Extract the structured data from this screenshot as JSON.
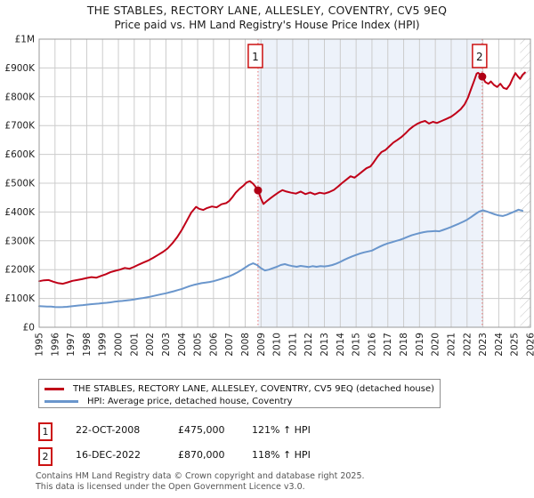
{
  "title": "THE STABLES, RECTORY LANE, ALLESLEY, COVENTRY, CV5 9EQ",
  "subtitle": "Price paid vs. HM Land Registry's House Price Index (HPI)",
  "chart_data": {
    "type": "line",
    "title": "Price paid vs. HM Land Registry's House Price Index (HPI)",
    "x_axis": {
      "range": [
        1995,
        2026
      ],
      "ticks": [
        1995,
        1996,
        1997,
        1998,
        1999,
        2000,
        2001,
        2002,
        2003,
        2004,
        2005,
        2006,
        2007,
        2008,
        2009,
        2010,
        2011,
        2012,
        2013,
        2014,
        2015,
        2016,
        2017,
        2018,
        2019,
        2020,
        2021,
        2022,
        2023,
        2024,
        2025,
        2026
      ],
      "grid": true
    },
    "y_axis": {
      "range": [
        0,
        1000000
      ],
      "unit": "GBP",
      "tick_values": [
        0,
        100000,
        200000,
        300000,
        400000,
        500000,
        600000,
        700000,
        800000,
        900000,
        1000000
      ],
      "tick_labels": [
        "£0",
        "£100K",
        "£200K",
        "£300K",
        "£400K",
        "£500K",
        "£600K",
        "£700K",
        "£800K",
        "£900K",
        "£1M"
      ],
      "grid": true
    },
    "shaded_region": {
      "from": 2008.81,
      "to": 2022.96,
      "color": "#edf2fa"
    },
    "hatch_region": {
      "from": 2025.35,
      "to": 2026
    },
    "markers": [
      {
        "label": "1",
        "x": 2008.81,
        "y": 475000
      },
      {
        "label": "2",
        "x": 2022.96,
        "y": 870000
      }
    ],
    "series": [
      {
        "name": "THE STABLES, RECTORY LANE, ALLESLEY, COVENTRY, CV5 9EQ (detached house)",
        "color": "#c00018",
        "points": [
          [
            1995.0,
            160000
          ],
          [
            1995.3,
            163000
          ],
          [
            1995.6,
            164000
          ],
          [
            1995.9,
            158000
          ],
          [
            1996.2,
            153000
          ],
          [
            1996.5,
            151000
          ],
          [
            1996.8,
            156000
          ],
          [
            1997.1,
            161000
          ],
          [
            1997.4,
            164000
          ],
          [
            1997.7,
            167000
          ],
          [
            1998.0,
            171000
          ],
          [
            1998.3,
            174000
          ],
          [
            1998.6,
            172000
          ],
          [
            1998.9,
            178000
          ],
          [
            1999.2,
            184000
          ],
          [
            1999.5,
            191000
          ],
          [
            1999.8,
            196000
          ],
          [
            2000.1,
            200000
          ],
          [
            2000.4,
            206000
          ],
          [
            2000.7,
            203000
          ],
          [
            2001.0,
            210000
          ],
          [
            2001.3,
            218000
          ],
          [
            2001.6,
            225000
          ],
          [
            2001.9,
            232000
          ],
          [
            2002.2,
            241000
          ],
          [
            2002.5,
            251000
          ],
          [
            2002.8,
            261000
          ],
          [
            2003.1,
            273000
          ],
          [
            2003.4,
            291000
          ],
          [
            2003.7,
            312000
          ],
          [
            2004.0,
            338000
          ],
          [
            2004.3,
            368000
          ],
          [
            2004.6,
            398000
          ],
          [
            2004.9,
            418000
          ],
          [
            2005.1,
            411000
          ],
          [
            2005.35,
            407000
          ],
          [
            2005.6,
            414000
          ],
          [
            2005.9,
            419000
          ],
          [
            2006.2,
            416000
          ],
          [
            2006.5,
            427000
          ],
          [
            2006.8,
            431000
          ],
          [
            2007.0,
            439000
          ],
          [
            2007.2,
            452000
          ],
          [
            2007.4,
            467000
          ],
          [
            2007.65,
            481000
          ],
          [
            2007.9,
            492000
          ],
          [
            2008.1,
            503000
          ],
          [
            2008.3,
            507000
          ],
          [
            2008.5,
            498000
          ],
          [
            2008.65,
            488000
          ],
          [
            2008.81,
            475000
          ],
          [
            2009.0,
            446000
          ],
          [
            2009.15,
            428000
          ],
          [
            2009.35,
            437000
          ],
          [
            2009.6,
            448000
          ],
          [
            2009.85,
            458000
          ],
          [
            2010.1,
            468000
          ],
          [
            2010.35,
            476000
          ],
          [
            2010.6,
            471000
          ],
          [
            2010.9,
            467000
          ],
          [
            2011.2,
            464000
          ],
          [
            2011.5,
            471000
          ],
          [
            2011.8,
            462000
          ],
          [
            2012.1,
            468000
          ],
          [
            2012.4,
            461000
          ],
          [
            2012.7,
            467000
          ],
          [
            2013.0,
            464000
          ],
          [
            2013.3,
            469000
          ],
          [
            2013.6,
            477000
          ],
          [
            2013.85,
            488000
          ],
          [
            2014.1,
            500000
          ],
          [
            2014.4,
            513000
          ],
          [
            2014.65,
            524000
          ],
          [
            2014.9,
            519000
          ],
          [
            2015.15,
            530000
          ],
          [
            2015.4,
            541000
          ],
          [
            2015.65,
            552000
          ],
          [
            2015.9,
            558000
          ],
          [
            2016.1,
            572000
          ],
          [
            2016.35,
            592000
          ],
          [
            2016.6,
            608000
          ],
          [
            2016.85,
            615000
          ],
          [
            2017.1,
            628000
          ],
          [
            2017.35,
            641000
          ],
          [
            2017.6,
            650000
          ],
          [
            2017.85,
            660000
          ],
          [
            2018.1,
            672000
          ],
          [
            2018.35,
            686000
          ],
          [
            2018.6,
            697000
          ],
          [
            2018.85,
            706000
          ],
          [
            2019.1,
            712000
          ],
          [
            2019.35,
            716000
          ],
          [
            2019.6,
            707000
          ],
          [
            2019.85,
            713000
          ],
          [
            2020.1,
            709000
          ],
          [
            2020.4,
            716000
          ],
          [
            2020.7,
            723000
          ],
          [
            2021.0,
            731000
          ],
          [
            2021.3,
            743000
          ],
          [
            2021.6,
            757000
          ],
          [
            2021.85,
            774000
          ],
          [
            2022.05,
            796000
          ],
          [
            2022.25,
            826000
          ],
          [
            2022.45,
            856000
          ],
          [
            2022.6,
            880000
          ],
          [
            2022.7,
            883000
          ],
          [
            2022.96,
            870000
          ],
          [
            2023.15,
            851000
          ],
          [
            2023.35,
            845000
          ],
          [
            2023.5,
            853000
          ],
          [
            2023.7,
            841000
          ],
          [
            2023.9,
            834000
          ],
          [
            2024.1,
            845000
          ],
          [
            2024.3,
            831000
          ],
          [
            2024.5,
            827000
          ],
          [
            2024.7,
            842000
          ],
          [
            2024.9,
            866000
          ],
          [
            2025.05,
            882000
          ],
          [
            2025.2,
            871000
          ],
          [
            2025.35,
            862000
          ],
          [
            2025.5,
            876000
          ],
          [
            2025.65,
            884000
          ]
        ]
      },
      {
        "name": "HPI: Average price, detached house, Coventry",
        "color": "#6a96cc",
        "points": [
          [
            1995.0,
            73000
          ],
          [
            1995.25,
            72500
          ],
          [
            1995.5,
            72000
          ],
          [
            1995.75,
            71500
          ],
          [
            1996.0,
            70500
          ],
          [
            1996.25,
            69800
          ],
          [
            1996.5,
            70200
          ],
          [
            1996.75,
            71000
          ],
          [
            1997.0,
            72500
          ],
          [
            1997.25,
            74000
          ],
          [
            1997.5,
            75500
          ],
          [
            1997.75,
            77000
          ],
          [
            1998.0,
            78500
          ],
          [
            1998.25,
            79800
          ],
          [
            1998.5,
            81000
          ],
          [
            1998.75,
            82000
          ],
          [
            1999.0,
            83500
          ],
          [
            1999.25,
            85000
          ],
          [
            1999.5,
            86500
          ],
          [
            1999.75,
            88500
          ],
          [
            2000.0,
            90000
          ],
          [
            2000.25,
            91500
          ],
          [
            2000.5,
            93000
          ],
          [
            2000.75,
            94500
          ],
          [
            2001.0,
            96500
          ],
          [
            2001.25,
            99000
          ],
          [
            2001.5,
            101000
          ],
          [
            2001.75,
            103500
          ],
          [
            2002.0,
            106000
          ],
          [
            2002.25,
            109000
          ],
          [
            2002.5,
            112000
          ],
          [
            2002.75,
            115000
          ],
          [
            2003.0,
            118000
          ],
          [
            2003.25,
            121500
          ],
          [
            2003.5,
            125000
          ],
          [
            2003.75,
            129000
          ],
          [
            2004.0,
            133000
          ],
          [
            2004.25,
            138000
          ],
          [
            2004.5,
            143000
          ],
          [
            2004.75,
            147000
          ],
          [
            2005.0,
            150000
          ],
          [
            2005.25,
            153000
          ],
          [
            2005.5,
            155000
          ],
          [
            2005.75,
            157000
          ],
          [
            2006.0,
            160000
          ],
          [
            2006.25,
            164000
          ],
          [
            2006.5,
            168000
          ],
          [
            2006.75,
            172500
          ],
          [
            2007.0,
            177000
          ],
          [
            2007.25,
            183000
          ],
          [
            2007.5,
            190000
          ],
          [
            2007.75,
            198000
          ],
          [
            2008.0,
            207000
          ],
          [
            2008.25,
            216000
          ],
          [
            2008.5,
            222000
          ],
          [
            2008.75,
            216000
          ],
          [
            2009.0,
            205000
          ],
          [
            2009.25,
            197000
          ],
          [
            2009.5,
            200000
          ],
          [
            2009.75,
            205000
          ],
          [
            2010.0,
            210000
          ],
          [
            2010.25,
            216000
          ],
          [
            2010.5,
            219000
          ],
          [
            2010.75,
            215000
          ],
          [
            2011.0,
            212000
          ],
          [
            2011.25,
            210000
          ],
          [
            2011.5,
            213000
          ],
          [
            2011.75,
            211000
          ],
          [
            2012.0,
            209000
          ],
          [
            2012.25,
            212000
          ],
          [
            2012.5,
            210000
          ],
          [
            2012.75,
            212000
          ],
          [
            2013.0,
            211000
          ],
          [
            2013.25,
            213000
          ],
          [
            2013.5,
            216000
          ],
          [
            2013.75,
            221000
          ],
          [
            2014.0,
            227000
          ],
          [
            2014.25,
            234000
          ],
          [
            2014.5,
            240000
          ],
          [
            2014.75,
            246000
          ],
          [
            2015.0,
            251000
          ],
          [
            2015.25,
            256000
          ],
          [
            2015.5,
            260000
          ],
          [
            2015.75,
            263000
          ],
          [
            2016.0,
            266000
          ],
          [
            2016.25,
            273000
          ],
          [
            2016.5,
            280000
          ],
          [
            2016.75,
            286000
          ],
          [
            2017.0,
            291000
          ],
          [
            2017.25,
            295000
          ],
          [
            2017.5,
            299000
          ],
          [
            2017.75,
            303000
          ],
          [
            2018.0,
            308000
          ],
          [
            2018.25,
            314000
          ],
          [
            2018.5,
            319000
          ],
          [
            2018.75,
            323000
          ],
          [
            2019.0,
            327000
          ],
          [
            2019.25,
            330000
          ],
          [
            2019.5,
            332000
          ],
          [
            2019.75,
            333000
          ],
          [
            2020.0,
            334000
          ],
          [
            2020.25,
            333000
          ],
          [
            2020.5,
            338000
          ],
          [
            2020.75,
            343000
          ],
          [
            2021.0,
            348000
          ],
          [
            2021.25,
            354000
          ],
          [
            2021.5,
            360000
          ],
          [
            2021.75,
            366000
          ],
          [
            2022.0,
            373000
          ],
          [
            2022.25,
            382000
          ],
          [
            2022.5,
            392000
          ],
          [
            2022.75,
            401000
          ],
          [
            2023.0,
            406000
          ],
          [
            2023.25,
            402000
          ],
          [
            2023.5,
            397000
          ],
          [
            2023.75,
            392000
          ],
          [
            2024.0,
            388000
          ],
          [
            2024.25,
            386000
          ],
          [
            2024.5,
            390000
          ],
          [
            2024.75,
            396000
          ],
          [
            2025.0,
            402000
          ],
          [
            2025.25,
            408000
          ],
          [
            2025.5,
            404000
          ]
        ]
      }
    ],
    "colors": {
      "grid": "#cccccc",
      "border": "#999999",
      "marker_line": "#e87070",
      "marker_box_border": "#cc1111"
    }
  },
  "legend": {
    "items": [
      {
        "label": "THE STABLES, RECTORY LANE, ALLESLEY, COVENTRY, CV5 9EQ (detached house)",
        "color": "#c00018"
      },
      {
        "label": "HPI: Average price, detached house, Coventry",
        "color": "#6a96cc"
      }
    ]
  },
  "sales": [
    {
      "num": "1",
      "date": "22-OCT-2008",
      "price": "£475,000",
      "vs_hpi": "121% ↑ HPI"
    },
    {
      "num": "2",
      "date": "16-DEC-2022",
      "price": "£870,000",
      "vs_hpi": "118% ↑ HPI"
    }
  ],
  "footer": {
    "line1": "Contains HM Land Registry data © Crown copyright and database right 2025.",
    "line2": "This data is licensed under the Open Government Licence v3.0."
  }
}
